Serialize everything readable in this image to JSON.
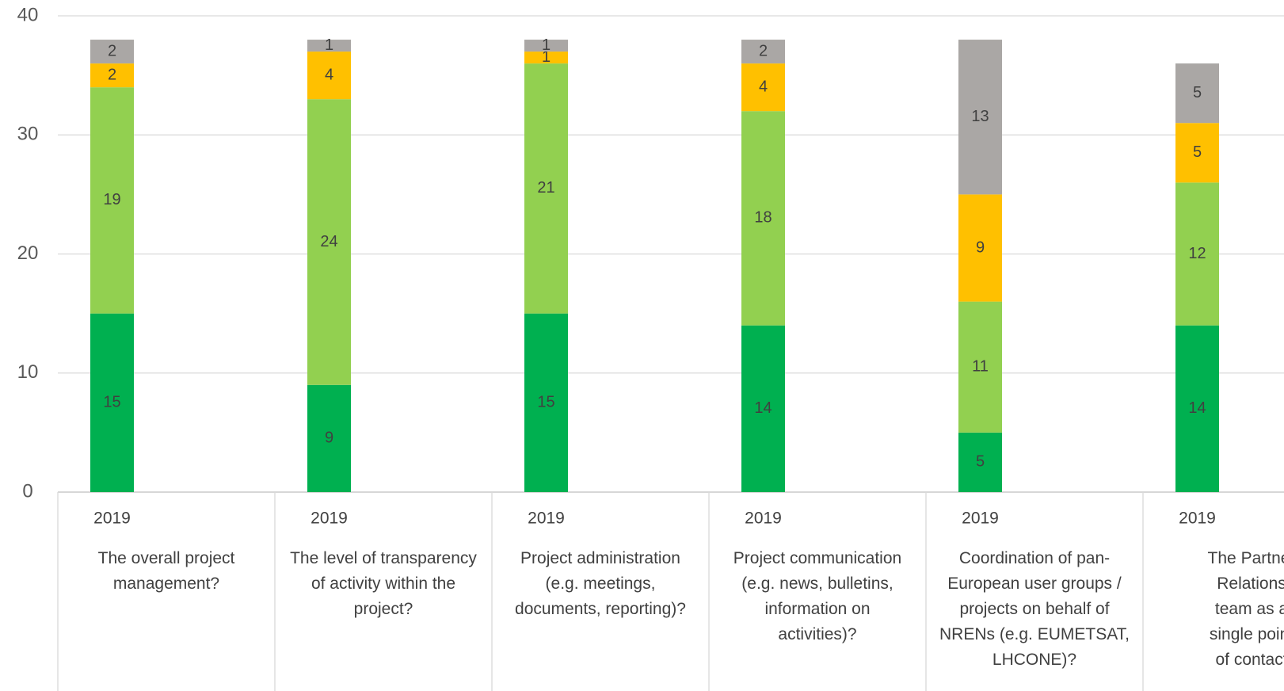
{
  "chart_data": {
    "type": "stacked_bar",
    "years": [
      "2019",
      "2019",
      "2019",
      "2019",
      "2019",
      "2019"
    ],
    "categories": [
      [
        "The overall project",
        "management?"
      ],
      [
        "The level of transparency",
        "of activity within the",
        "project?"
      ],
      [
        "Project administration",
        "(e.g. meetings,",
        "documents, reporting)?"
      ],
      [
        "Project communication",
        "(e.g. news, bulletins,",
        "information on",
        "activities)?"
      ],
      [
        "Coordination of pan-",
        "European user groups /",
        "projects on behalf of",
        "NRENs (e.g. EUMETSAT,",
        "LHCONE)?"
      ],
      [
        "The Partner",
        "Relations",
        "team as a",
        "single point",
        "of contact"
      ]
    ],
    "series": [
      {
        "color": "#00b050",
        "values": [
          15,
          9,
          15,
          14,
          5,
          14
        ]
      },
      {
        "color": "#92d050",
        "values": [
          19,
          24,
          21,
          18,
          11,
          12
        ]
      },
      {
        "color": "#ffc000",
        "values": [
          2,
          4,
          1,
          4,
          9,
          5
        ]
      },
      {
        "color": "#aaa7a5",
        "values": [
          2,
          1,
          1,
          2,
          13,
          5
        ]
      }
    ],
    "ylim": [
      0,
      40
    ],
    "yticks": [
      0,
      10,
      20,
      30,
      40
    ],
    "grid": true
  }
}
